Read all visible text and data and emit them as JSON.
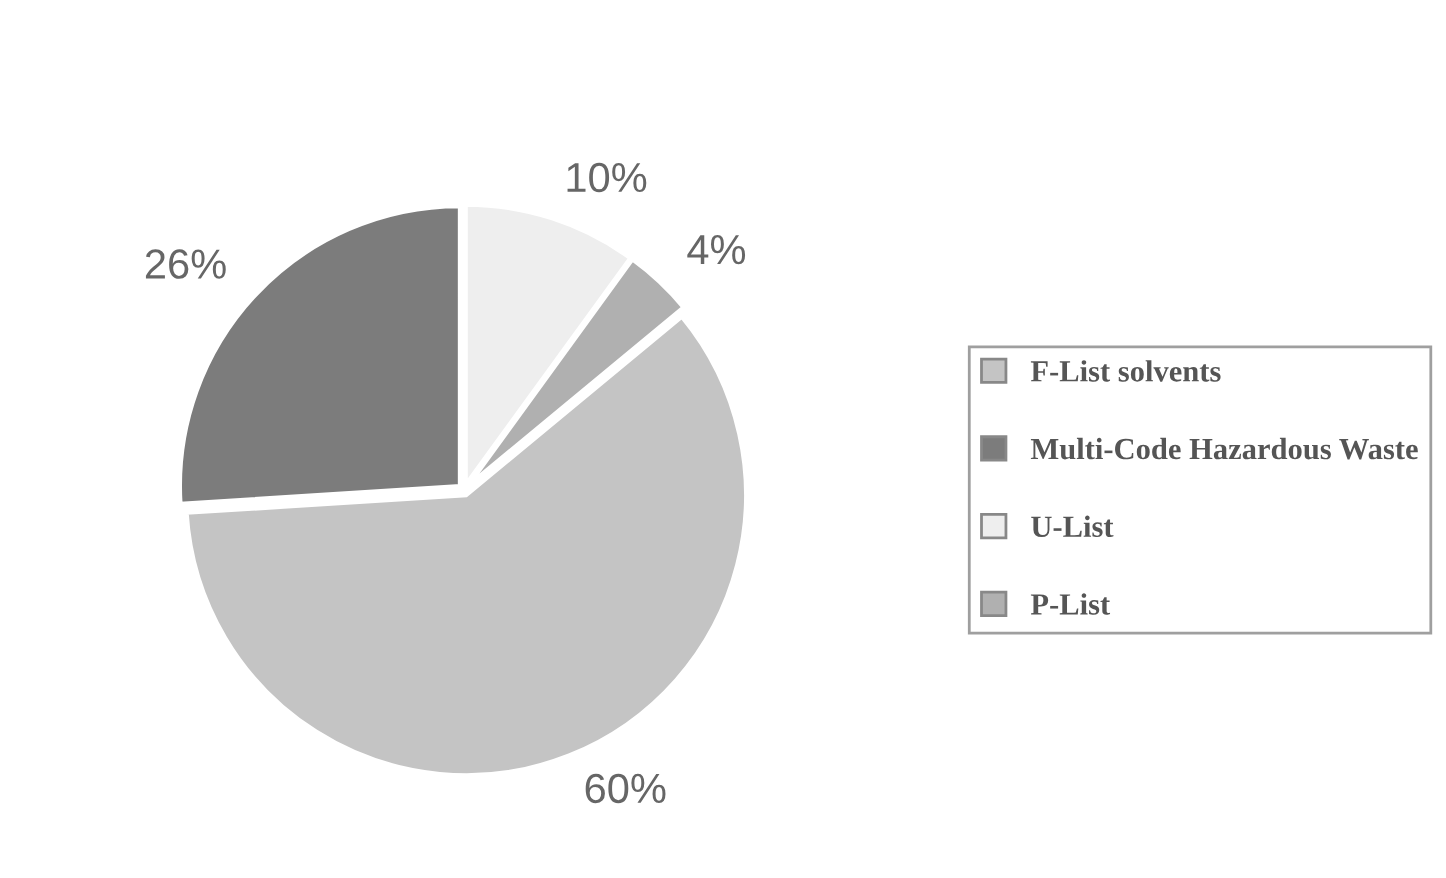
{
  "chart_data": {
    "type": "pie",
    "categories": [
      "F-List solvents",
      "Multi-Code Hazardous Waste",
      "U-List",
      "P-List"
    ],
    "values": [
      60,
      26,
      10,
      4
    ],
    "colors": [
      "#c4c4c4",
      "#7c7c7c",
      "#eeeeee",
      "#b0b0b0"
    ],
    "value_labels": [
      "60%",
      "26%",
      "10%",
      "4%"
    ],
    "legend": "right"
  }
}
